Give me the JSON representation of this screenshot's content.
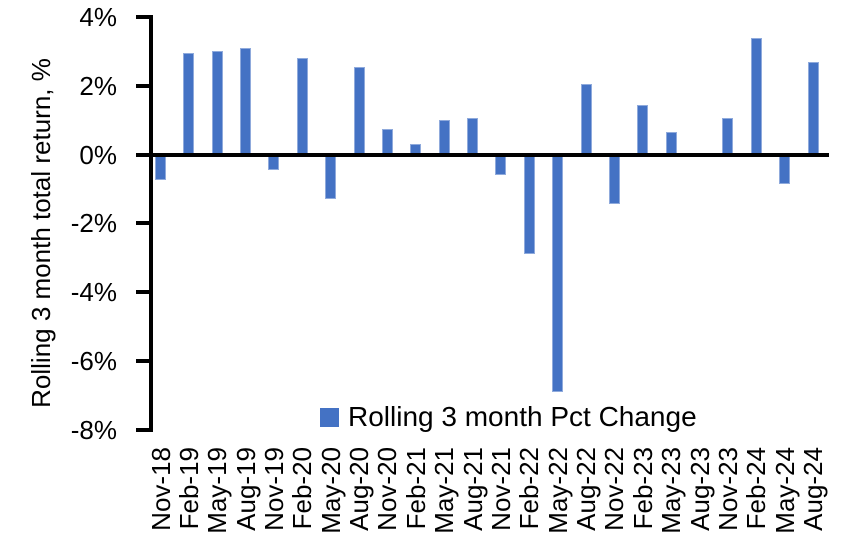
{
  "chart_data": {
    "type": "bar",
    "title": "",
    "xlabel": "",
    "ylabel": "Rolling 3 month total return, %",
    "legend": {
      "label": "Rolling 3 month Pct Change",
      "position": "inside-bottom-center"
    },
    "ylim": [
      -8,
      4
    ],
    "y_tick_step": 2,
    "y_ticks": [
      {
        "value": 4,
        "label": "4%"
      },
      {
        "value": 2,
        "label": "2%"
      },
      {
        "value": 0,
        "label": "0%"
      },
      {
        "value": -2,
        "label": "-2%"
      },
      {
        "value": -4,
        "label": "-4%"
      },
      {
        "value": -6,
        "label": "-6%"
      },
      {
        "value": -8,
        "label": "-8%"
      }
    ],
    "grid": false,
    "categories": [
      "Nov-18",
      "Feb-19",
      "May-19",
      "Aug-19",
      "Nov-19",
      "Feb-20",
      "May-20",
      "Aug-20",
      "Nov-20",
      "Feb-21",
      "May-21",
      "Aug-21",
      "Nov-21",
      "Feb-22",
      "May-22",
      "Aug-22",
      "Nov-22",
      "Feb-23",
      "May-23",
      "Aug-23",
      "Nov-23",
      "Feb-24",
      "May-24",
      "Aug-24"
    ],
    "values": [
      -0.75,
      2.95,
      3.0,
      3.1,
      -0.45,
      2.8,
      -1.3,
      2.55,
      0.75,
      0.3,
      1.0,
      1.05,
      -0.6,
      -2.9,
      -6.9,
      2.05,
      -1.45,
      1.45,
      0.65,
      0.0,
      1.05,
      3.4,
      -0.85,
      2.7
    ],
    "colors": {
      "bar_fill": "#4472C4",
      "bar_border": "#8FAADC",
      "axis": "#000000",
      "text": "#000000",
      "background": "#FFFFFF"
    }
  }
}
